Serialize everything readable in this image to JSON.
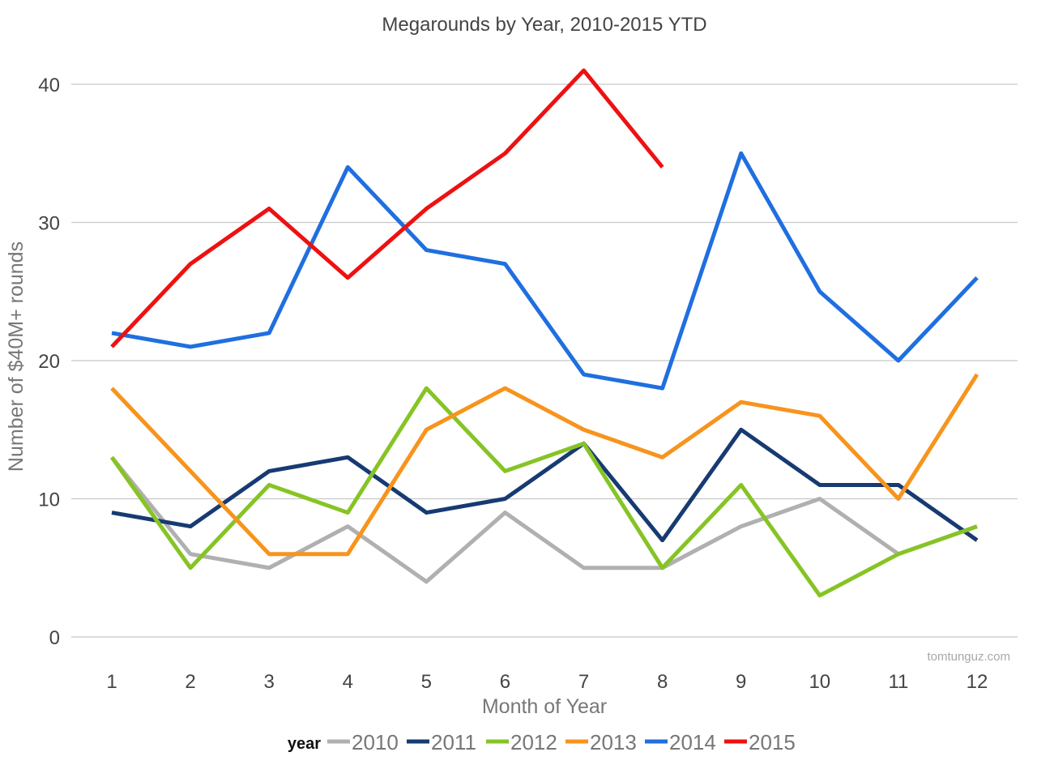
{
  "chart_data": {
    "type": "line",
    "title": "Megarounds by Year, 2010-2015 YTD",
    "xlabel": "Month of Year",
    "ylabel": "Number of $40M+ rounds",
    "x": [
      1,
      2,
      3,
      4,
      5,
      6,
      7,
      8,
      9,
      10,
      11,
      12
    ],
    "ylim": [
      0,
      40
    ],
    "yticks": [
      0,
      10,
      20,
      30,
      40
    ],
    "grid": true,
    "legend": {
      "title": "year",
      "placement": "bottom"
    },
    "watermark": "tomtunguz.com",
    "series": [
      {
        "name": "2010",
        "color": "#b0b0b0",
        "values": [
          13,
          6,
          5,
          8,
          4,
          9,
          5,
          5,
          8,
          10,
          6,
          8
        ]
      },
      {
        "name": "2011",
        "color": "#173a72",
        "values": [
          9,
          8,
          12,
          13,
          9,
          10,
          14,
          7,
          15,
          11,
          11,
          7
        ]
      },
      {
        "name": "2012",
        "color": "#86c425",
        "values": [
          13,
          5,
          11,
          9,
          18,
          12,
          14,
          5,
          11,
          3,
          6,
          8
        ]
      },
      {
        "name": "2013",
        "color": "#f7941d",
        "values": [
          18,
          12,
          6,
          6,
          15,
          18,
          15,
          13,
          17,
          16,
          10,
          19
        ]
      },
      {
        "name": "2014",
        "color": "#1f6fe0",
        "values": [
          22,
          21,
          22,
          34,
          28,
          27,
          19,
          18,
          35,
          25,
          20,
          26
        ]
      },
      {
        "name": "2015",
        "color": "#ee1111",
        "values": [
          21,
          27,
          31,
          26,
          31,
          35,
          41,
          34,
          null,
          null,
          null,
          null
        ]
      }
    ]
  }
}
